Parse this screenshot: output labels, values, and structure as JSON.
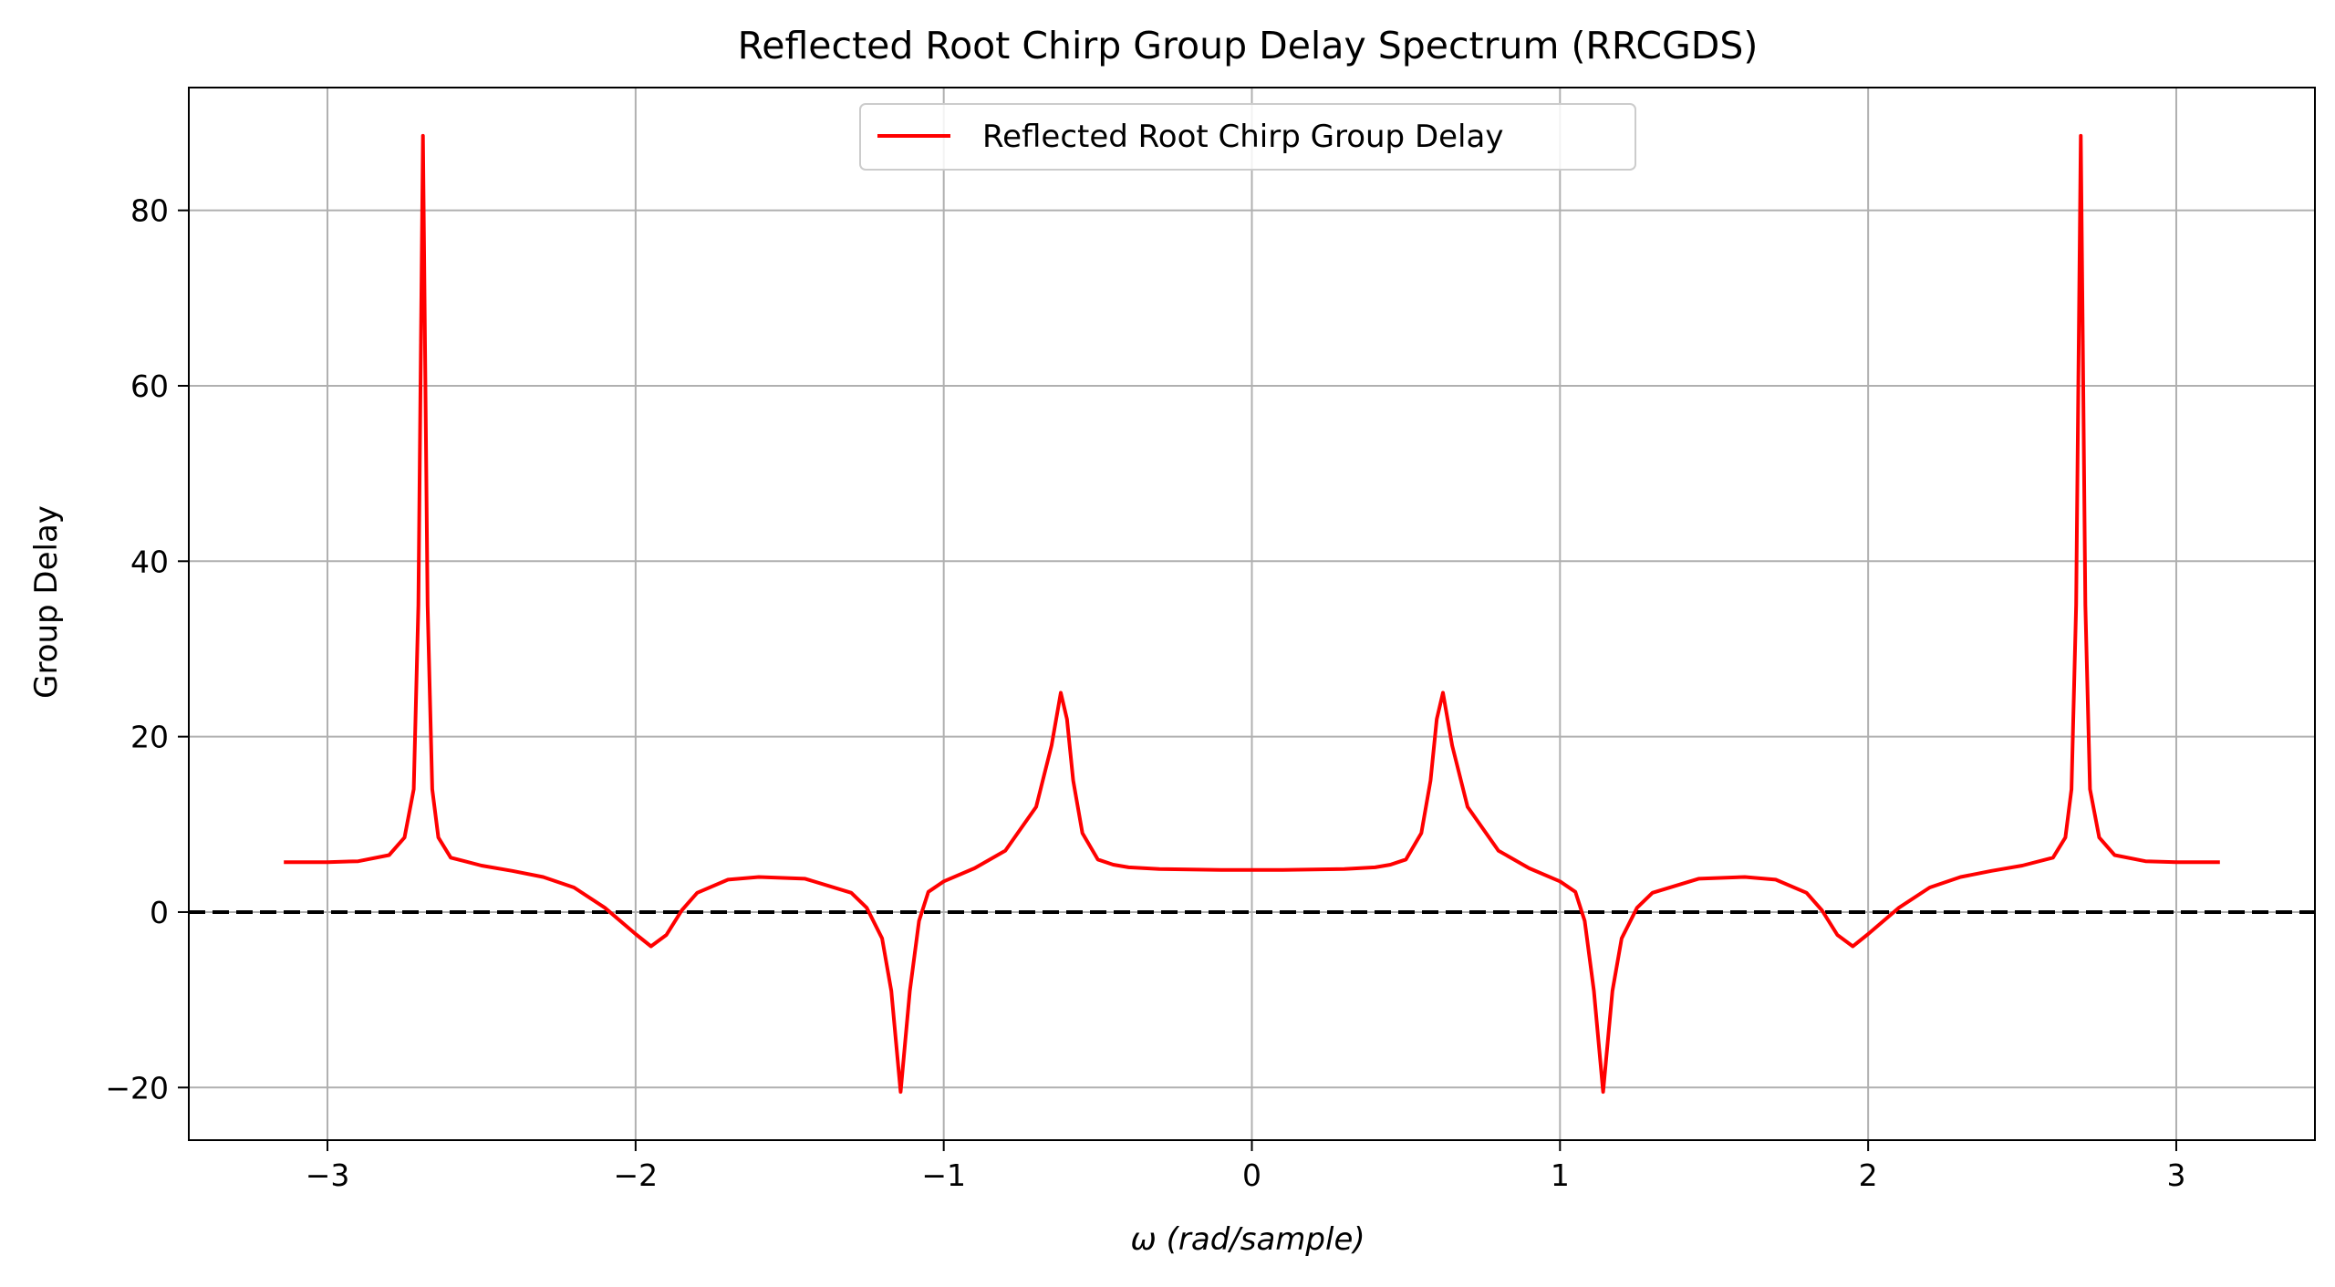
{
  "chart_data": {
    "type": "line",
    "title": "Reflected Root Chirp Group Delay Spectrum (RRCGDS)",
    "xlabel": "ω (rad/sample)",
    "ylabel": "Group Delay",
    "xlim": [
      -3.45,
      3.45
    ],
    "ylim": [
      -26,
      94
    ],
    "x_ticks": [
      -3,
      -2,
      -1,
      0,
      1,
      2,
      3
    ],
    "y_ticks": [
      -20,
      0,
      20,
      40,
      60,
      80
    ],
    "x_tick_labels": [
      "−3",
      "−2",
      "−1",
      "0",
      "1",
      "2",
      "3"
    ],
    "y_tick_labels": [
      "−20",
      "0",
      "20",
      "40",
      "60",
      "80"
    ],
    "grid": true,
    "legend_position": "top-center",
    "colors": {
      "series": "#ff0000",
      "reference_line": "#000000",
      "grid": "#b0b0b0"
    },
    "reference_line": {
      "y": 0,
      "style": "dashed"
    },
    "series": [
      {
        "name": "Reflected Root Chirp Group Delay",
        "x": [
          -3.1416,
          -3.0,
          -2.9,
          -2.8,
          -2.75,
          -2.72,
          -2.705,
          -2.69,
          -2.675,
          -2.66,
          -2.64,
          -2.6,
          -2.5,
          -2.4,
          -2.3,
          -2.2,
          -2.1,
          -2.0,
          -1.95,
          -1.9,
          -1.85,
          -1.8,
          -1.7,
          -1.6,
          -1.45,
          -1.3,
          -1.25,
          -1.2,
          -1.17,
          -1.14,
          -1.11,
          -1.08,
          -1.05,
          -1.0,
          -0.9,
          -0.8,
          -0.7,
          -0.65,
          -0.62,
          -0.6,
          -0.58,
          -0.55,
          -0.5,
          -0.45,
          -0.4,
          -0.3,
          -0.2,
          -0.1,
          0.0,
          0.1,
          0.2,
          0.3,
          0.4,
          0.45,
          0.5,
          0.55,
          0.58,
          0.6,
          0.62,
          0.65,
          0.7,
          0.8,
          0.9,
          1.0,
          1.05,
          1.08,
          1.11,
          1.14,
          1.17,
          1.2,
          1.25,
          1.3,
          1.45,
          1.6,
          1.7,
          1.8,
          1.85,
          1.9,
          1.95,
          2.0,
          2.1,
          2.2,
          2.3,
          2.4,
          2.5,
          2.6,
          2.64,
          2.66,
          2.675,
          2.69,
          2.705,
          2.72,
          2.75,
          2.8,
          2.9,
          3.0,
          3.1416
        ],
        "y": [
          5.7,
          5.7,
          5.8,
          6.5,
          8.5,
          14,
          35,
          88.5,
          35,
          14,
          8.5,
          6.2,
          5.3,
          4.7,
          4.0,
          2.8,
          0.5,
          -2.5,
          -3.9,
          -2.6,
          0.2,
          2.2,
          3.7,
          4.0,
          3.8,
          2.2,
          0.5,
          -3.0,
          -9.0,
          -20.5,
          -9.0,
          -1.0,
          2.3,
          3.5,
          5.0,
          7.0,
          12.0,
          19.0,
          25.0,
          22.0,
          15.0,
          9.0,
          6.0,
          5.4,
          5.1,
          4.9,
          4.85,
          4.8,
          4.8,
          4.8,
          4.85,
          4.9,
          5.1,
          5.4,
          6.0,
          9.0,
          15.0,
          22.0,
          25.0,
          19.0,
          12.0,
          7.0,
          5.0,
          3.5,
          2.3,
          -1.0,
          -9.0,
          -20.5,
          -9.0,
          -3.0,
          0.5,
          2.2,
          3.8,
          4.0,
          3.7,
          2.2,
          0.2,
          -2.6,
          -3.9,
          -2.5,
          0.5,
          2.8,
          4.0,
          4.7,
          5.3,
          6.2,
          8.5,
          14,
          35,
          88.5,
          35,
          14,
          8.5,
          6.5,
          5.8,
          5.7,
          5.7
        ]
      }
    ]
  }
}
